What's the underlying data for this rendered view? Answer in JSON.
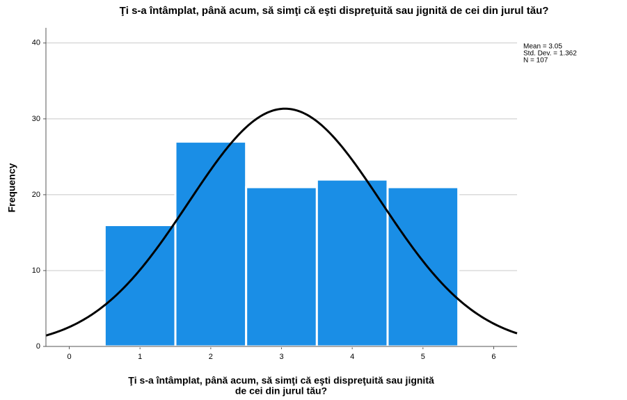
{
  "chart_data": {
    "type": "histogram",
    "title": "Ţi s-a întâmplat, până acum, să simţi că eşti dispreţuită sau jignită de cei din jurul tău?",
    "xlabel": [
      "Ţi s-a întâmplat, până acum, să simţi că eşti dispreţuită sau jignită",
      "de cei din jurul tău?"
    ],
    "ylabel": "Frequency",
    "bins": [
      0.5,
      1.5,
      2.5,
      3.5,
      4.5,
      5.5
    ],
    "values": [
      16,
      27,
      21,
      22,
      21
    ],
    "color": "#1a8ee6",
    "xlim": [
      -0.33,
      6.33
    ],
    "xticks": [
      0,
      1,
      2,
      3,
      4,
      5,
      6
    ],
    "ylim": [
      0,
      42
    ],
    "yticks": [
      0,
      10,
      20,
      30,
      40
    ],
    "grid": true,
    "normal_curve": {
      "mean": 3.05,
      "sd": 1.362,
      "n": 107,
      "color": "#000000"
    },
    "annotations": [
      "Mean = 3.05",
      "Std. Dev. = 1.362",
      "N = 107"
    ]
  }
}
